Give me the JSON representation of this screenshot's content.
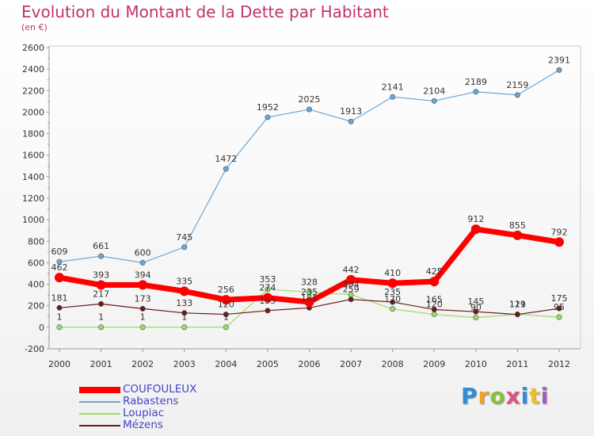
{
  "header": {
    "title": "Evolution du Montant de la Dette par Habitant",
    "subtitle": "(en €)"
  },
  "brand": {
    "text": "Proxiti",
    "colors": [
      "#2e8fd6",
      "#f0a020",
      "#8ac040",
      "#e05080",
      "#2e8fd6",
      "#e8c030",
      "#a060c0"
    ]
  },
  "chart_data": {
    "type": "line",
    "x": [
      2000,
      2001,
      2002,
      2003,
      2004,
      2005,
      2006,
      2007,
      2008,
      2009,
      2010,
      2011,
      2012
    ],
    "ylim": [
      -200,
      2600
    ],
    "yticks": [
      -200,
      0,
      200,
      400,
      600,
      800,
      1000,
      1200,
      1400,
      1600,
      1800,
      2000,
      2200,
      2400,
      2600
    ],
    "grid": false,
    "legend_position": "bottom-left",
    "series": [
      {
        "name": "COUFOULEUX",
        "color": "#ff0000",
        "values": [
          462,
          393,
          394,
          335,
          256,
          274,
          235,
          442,
          410,
          425,
          912,
          855,
          792
        ]
      },
      {
        "name": "Rabastens",
        "color": "#6aa6d6",
        "values": [
          609,
          661,
          600,
          745,
          1472,
          1952,
          2025,
          1913,
          2141,
          2104,
          2189,
          2159,
          2391
        ]
      },
      {
        "name": "Loupiac",
        "color": "#99dd66",
        "values": [
          1,
          1,
          1,
          1,
          1,
          353,
          328,
          304,
          170,
          120,
          90,
          121,
          95
        ]
      },
      {
        "name": "Mézens",
        "color": "#6b1a1a",
        "values": [
          181,
          217,
          173,
          133,
          120,
          155,
          181,
          259,
          235,
          165,
          145,
          119,
          175
        ]
      }
    ]
  }
}
